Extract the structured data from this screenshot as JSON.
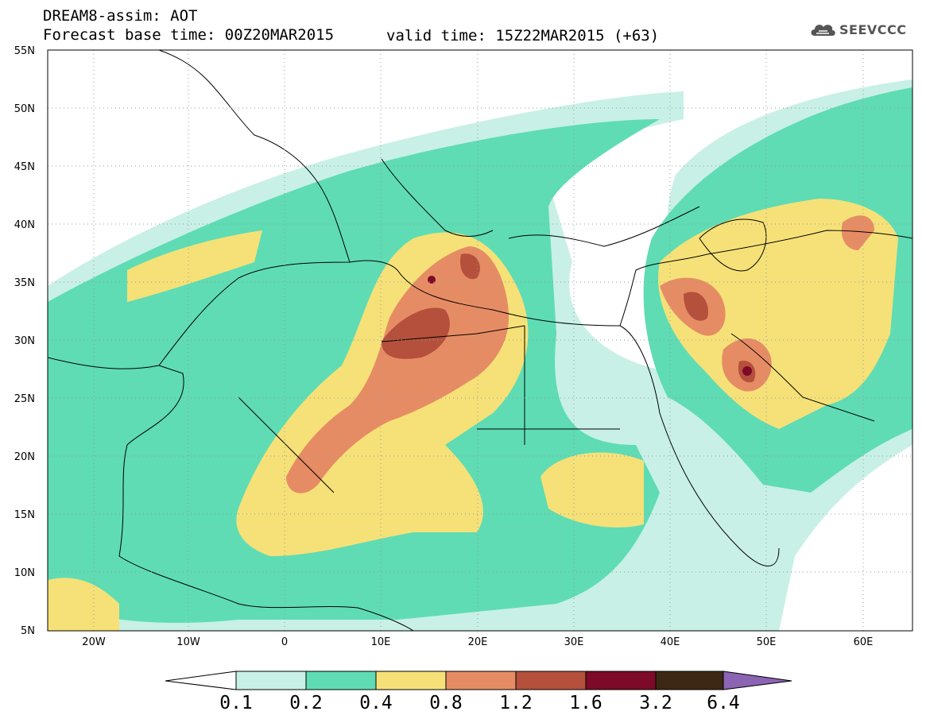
{
  "header": {
    "title_line1": "DREAM8-assim: AOT",
    "base_time": "Forecast base time: 00Z20MAR2015",
    "valid_time": "valid time: 15Z22MAR2015 (+63)",
    "logo_text": "SEEVCCC"
  },
  "map": {
    "lon_range": [
      -25,
      65
    ],
    "lat_range": [
      5,
      55
    ],
    "lat_ticks": [
      "55N",
      "50N",
      "45N",
      "40N",
      "35N",
      "30N",
      "25N",
      "20N",
      "15N",
      "10N",
      "5N"
    ],
    "lon_ticks": [
      "20W",
      "10W",
      "0",
      "10E",
      "20E",
      "30E",
      "40E",
      "50E",
      "60E"
    ]
  },
  "colorbar": {
    "labels": [
      "0.1",
      "0.2",
      "0.4",
      "0.8",
      "1.2",
      "1.6",
      "3.2",
      "6.4"
    ],
    "colors": [
      "#c8f0e6",
      "#5fdcb4",
      "#f5e178",
      "#e68c64",
      "#b4503c",
      "#7d0a28",
      "#3c2814",
      "#8c64b4"
    ]
  }
}
